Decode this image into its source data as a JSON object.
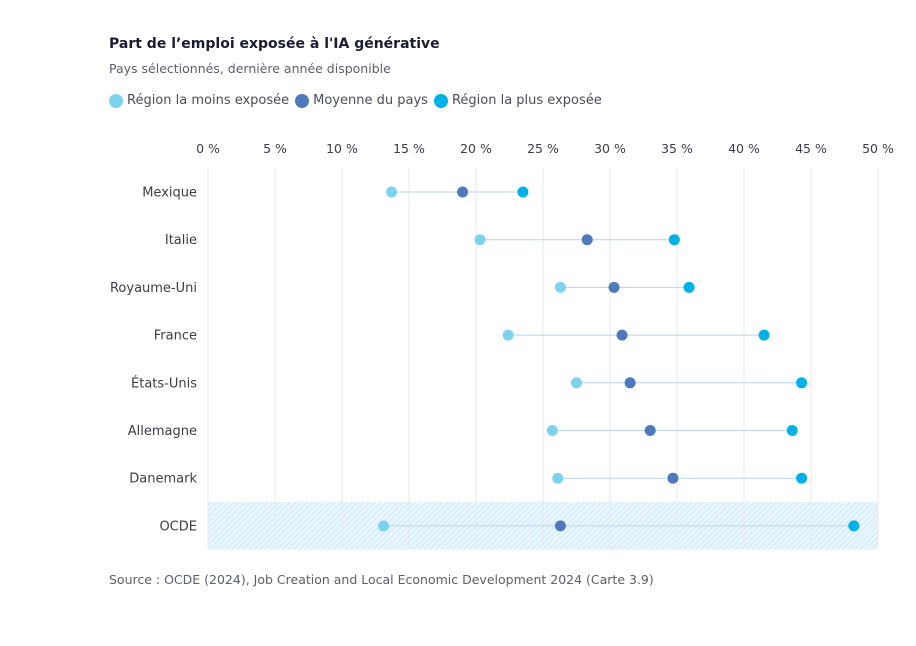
{
  "title": "Part de l’emploi exposée à l'IA générative",
  "subtitle": "Pays sélectionnés, dernière année disponible",
  "source": "Source : OCDE (2024), Job Creation and Local Economic Development 2024 (Carte 3.9)",
  "legend": [
    {
      "label": "Région la moins exposée",
      "color": "#7dd3ef"
    },
    {
      "label": "Moyenne du pays",
      "color": "#4f79bd"
    },
    {
      "label": "Région la plus exposée",
      "color": "#00b1e8"
    }
  ],
  "chart_data": {
    "type": "scatter",
    "orientation": "horizontal dumbbell",
    "xlim": [
      0,
      50
    ],
    "x_ticks": [
      "0 %",
      "5 %",
      "10 %",
      "15 %",
      "20 %",
      "25 %",
      "30 %",
      "35 %",
      "40 %",
      "45 %",
      "50 %"
    ],
    "categories": [
      "Mexique",
      "Italie",
      "Royaume-Uni",
      "France",
      "États-Unis",
      "Allemagne",
      "Danemark",
      "OCDE"
    ],
    "highlight_category": "OCDE",
    "series": [
      {
        "name": "Région la moins exposée",
        "values": [
          13.7,
          20.3,
          26.3,
          22.4,
          27.5,
          25.7,
          26.1,
          13.1
        ]
      },
      {
        "name": "Moyenne du pays",
        "values": [
          19.0,
          28.3,
          30.3,
          30.9,
          31.5,
          33.0,
          34.7,
          26.3
        ]
      },
      {
        "name": "Région la plus exposée",
        "values": [
          23.5,
          34.8,
          35.9,
          41.5,
          44.3,
          43.6,
          44.3,
          48.2
        ]
      }
    ],
    "grid": true,
    "legend_position": "top-left"
  }
}
